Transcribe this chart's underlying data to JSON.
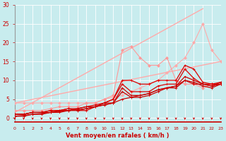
{
  "bg_color": "#c8ecee",
  "grid_color": "#aed8dc",
  "xlabel": "Vent moyen/en rafales ( km/h )",
  "xlabel_color": "#cc0000",
  "tick_color": "#cc0000",
  "ylim": [
    -1,
    30
  ],
  "xlim": [
    0,
    23
  ],
  "yticks": [
    0,
    5,
    10,
    15,
    20,
    25,
    30
  ],
  "xticks": [
    0,
    1,
    2,
    3,
    4,
    5,
    6,
    7,
    8,
    9,
    10,
    11,
    12,
    13,
    14,
    15,
    16,
    17,
    18,
    19,
    20,
    21,
    22,
    23
  ],
  "series": [
    {
      "x": [
        0,
        23
      ],
      "y": [
        4,
        15
      ],
      "color": "#ffaaaa",
      "lw": 1.0,
      "marker": null,
      "ms": 0
    },
    {
      "x": [
        0,
        21
      ],
      "y": [
        1.5,
        29
      ],
      "color": "#ffaaaa",
      "lw": 1.0,
      "marker": null,
      "ms": 0
    },
    {
      "x": [
        0,
        1,
        2,
        3,
        4,
        5,
        6,
        7,
        8,
        9,
        10,
        11,
        12,
        13,
        14,
        15,
        16,
        17,
        18,
        19,
        20,
        21,
        22,
        23
      ],
      "y": [
        4,
        4,
        4,
        4,
        4,
        4,
        4,
        4,
        4,
        4,
        5,
        5.5,
        6,
        7,
        8,
        9,
        10,
        12,
        14,
        16,
        20,
        25,
        18,
        15
      ],
      "color": "#ffaaaa",
      "lw": 0.8,
      "marker": "D",
      "ms": 2.0
    },
    {
      "x": [
        0,
        1,
        2,
        3,
        4,
        5,
        6,
        7,
        8,
        9,
        10,
        11,
        12,
        13,
        14,
        15,
        16,
        17,
        18,
        19,
        20,
        21,
        22,
        23
      ],
      "y": [
        2,
        2,
        2,
        2,
        2.5,
        3,
        3,
        3,
        4,
        4,
        5,
        6,
        18,
        19,
        16,
        14,
        14,
        16,
        10,
        9,
        9,
        8,
        9,
        9
      ],
      "color": "#ff9999",
      "lw": 0.8,
      "marker": "D",
      "ms": 2.0
    },
    {
      "x": [
        0,
        1,
        2,
        3,
        4,
        5,
        6,
        7,
        8,
        9,
        10,
        11,
        12,
        13,
        14,
        15,
        16,
        17,
        18,
        19,
        20,
        21,
        22,
        23
      ],
      "y": [
        1,
        1,
        1.5,
        1.5,
        2,
        2,
        2.5,
        2,
        2,
        3,
        4,
        5,
        10,
        10,
        9,
        9,
        10,
        10,
        10,
        14,
        13,
        9.5,
        9,
        9.5
      ],
      "color": "#dd0000",
      "lw": 0.9,
      "marker": "+",
      "ms": 3.5
    },
    {
      "x": [
        0,
        1,
        2,
        3,
        4,
        5,
        6,
        7,
        8,
        9,
        10,
        11,
        12,
        13,
        14,
        15,
        16,
        17,
        18,
        19,
        20,
        21,
        22,
        23
      ],
      "y": [
        1,
        1,
        1.5,
        1.5,
        2,
        2,
        2.5,
        2.5,
        3,
        3.5,
        4,
        5,
        9,
        7,
        7,
        7,
        8.5,
        9,
        9,
        13,
        10.5,
        9,
        9,
        9
      ],
      "color": "#dd0000",
      "lw": 0.9,
      "marker": "+",
      "ms": 3.5
    },
    {
      "x": [
        0,
        1,
        2,
        3,
        4,
        5,
        6,
        7,
        8,
        9,
        10,
        11,
        12,
        13,
        14,
        15,
        16,
        17,
        18,
        19,
        20,
        21,
        22,
        23
      ],
      "y": [
        1,
        1,
        1.5,
        1.5,
        1.5,
        2,
        2,
        2.5,
        3,
        3,
        4,
        4,
        8,
        6,
        6,
        6.5,
        7.5,
        8,
        8.5,
        11,
        10,
        9,
        8.5,
        9
      ],
      "color": "#cc0000",
      "lw": 0.9,
      "marker": "+",
      "ms": 3.5
    },
    {
      "x": [
        0,
        1,
        2,
        3,
        4,
        5,
        6,
        7,
        8,
        9,
        10,
        11,
        12,
        13,
        14,
        15,
        16,
        17,
        18,
        19,
        20,
        21,
        22,
        23
      ],
      "y": [
        0.5,
        0.5,
        1,
        1,
        1.5,
        1.5,
        2,
        2,
        2.5,
        3,
        3.5,
        4,
        7,
        5.5,
        5.5,
        6,
        7,
        8,
        8,
        10,
        9.5,
        8.5,
        8,
        9
      ],
      "color": "#cc0000",
      "lw": 0.9,
      "marker": "+",
      "ms": 3.5
    },
    {
      "x": [
        0,
        1,
        2,
        3,
        4,
        5,
        6,
        7,
        8,
        9,
        10,
        11,
        12,
        13,
        14,
        15,
        16,
        17,
        18,
        19,
        20,
        21,
        22,
        23
      ],
      "y": [
        0.5,
        0.7,
        1,
        1.2,
        1.5,
        1.8,
        2,
        2.2,
        2.5,
        3,
        3.5,
        4,
        5,
        5.5,
        6,
        6.5,
        7.5,
        8,
        8.5,
        10,
        9,
        9,
        8.5,
        9.5
      ],
      "color": "#cc0000",
      "lw": 0.9,
      "marker": "+",
      "ms": 3.0
    }
  ]
}
